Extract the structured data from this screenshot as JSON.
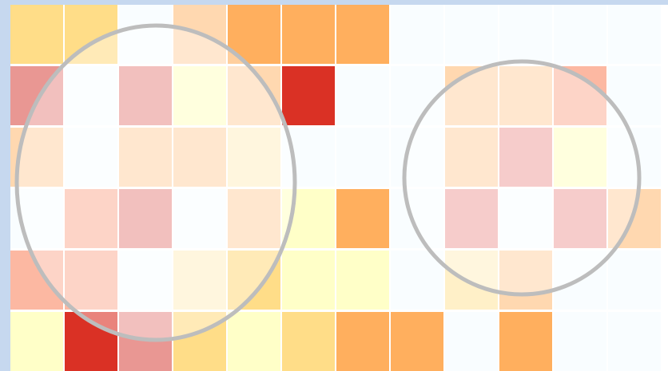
{
  "palette": {
    "e": "#f9fdff",
    "y": "#ffffc8",
    "c": "#fff0c8",
    "g": "#ffdd88",
    "p": "#ffd8b0",
    "o": "#ffaf5e",
    "s": "#f97242",
    "r": "#da3125",
    "k": "#fcb8a2",
    "m": "#f0aaa8",
    "n": "#e99793"
  },
  "grid": {
    "rows": [
      [
        "g",
        "g",
        "e",
        "p",
        "o",
        "o",
        "o",
        "e",
        "e",
        "e",
        "e",
        "e"
      ],
      [
        "n",
        "e",
        "n",
        "y",
        "p",
        "r",
        "e",
        "e",
        "p",
        "p",
        "k",
        "e"
      ],
      [
        "p",
        "e",
        "p",
        "p",
        "c",
        "e",
        "e",
        "e",
        "p",
        "m",
        "y",
        "e"
      ],
      [
        "e",
        "k",
        "n",
        "e",
        "p",
        "y",
        "o",
        "e",
        "m",
        "e",
        "m",
        "p"
      ],
      [
        "k",
        "k",
        "e",
        "c",
        "g",
        "y",
        "y",
        "e",
        "c",
        "p",
        "e",
        "e"
      ],
      [
        "y",
        "r",
        "n",
        "g",
        "y",
        "g",
        "o",
        "o",
        "e",
        "o",
        "e",
        "e"
      ]
    ],
    "colored_under_lens": {
      "row-1-col-0": "#da3125",
      "row-2-col-0": "#ffaf5e",
      "row-4-col-0": "#f97242",
      "row-1-col-4": "#ffd8b0",
      "row-1-col-10": "#f97242",
      "row-4-col-8": "#ffdd88",
      "row-4-col-9": "#ffaf5e",
      "row-3-col-11": "#ffaf5e",
      "row-3-col-5": "#ffffc8"
    }
  },
  "lenses": [
    {
      "name": "magnifier-lens-left"
    },
    {
      "name": "magnifier-lens-right"
    }
  ]
}
